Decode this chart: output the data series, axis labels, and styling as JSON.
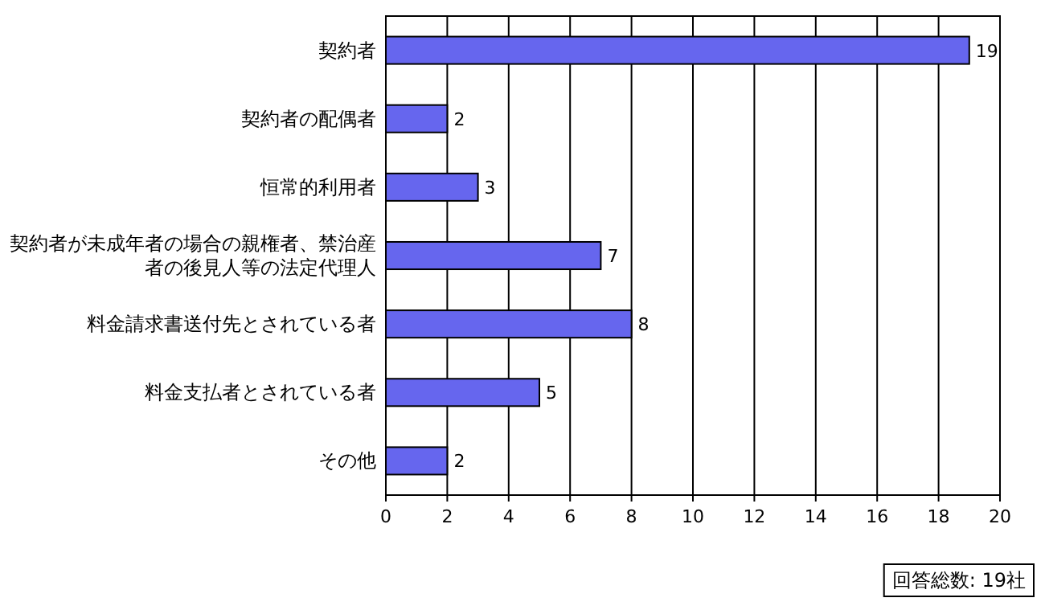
{
  "chart_data": {
    "type": "bar",
    "orientation": "horizontal",
    "categories": [
      "契約者",
      "契約者の配偶者",
      "恒常的利用者",
      "契約者が未成年者の場合の親権者、禁治産者の後見人等の法定代理人",
      "料金請求書送付先とされている者",
      "料金支払者とされている者",
      "その他"
    ],
    "values": [
      19,
      2,
      3,
      7,
      8,
      5,
      2
    ],
    "color": "#6666ee",
    "xlim": [
      0,
      20
    ],
    "xticks": [
      0,
      2,
      4,
      6,
      8,
      10,
      12,
      14,
      16,
      18,
      20
    ],
    "grid": "x",
    "data_labels": true,
    "annotations": [
      "回答総数: 19社"
    ]
  }
}
